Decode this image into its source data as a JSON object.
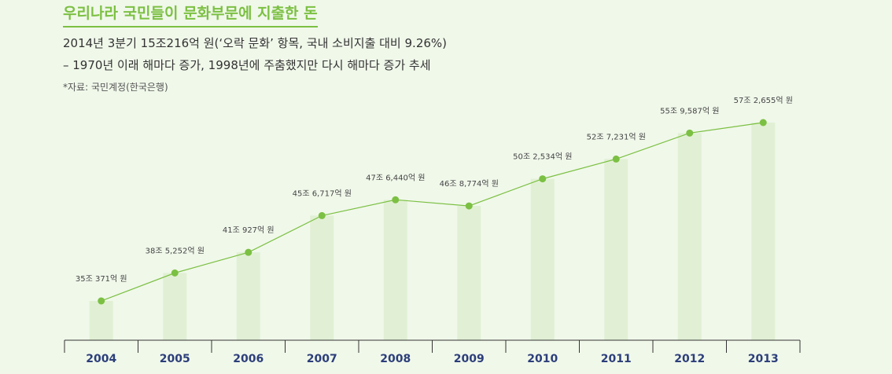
{
  "header": {
    "title": "우리나라 국민들이 문화부문에 지출한 돈",
    "subtitle_line1": "2014년 3분기 15조216억 원(‘오락 문화’ 항목, 국내 소비지출 대비 9.26%)",
    "subtitle_line2": "– 1970년 이래 해마다 증가, 1998년에 주춤했지만 다시 해마다 증가 추세",
    "source": "*자료: 국민계정(한국은행)"
  },
  "colors": {
    "title": "#7cc043",
    "line": "#7cc043",
    "point": "#7cc043",
    "bar": "#e1f0d4",
    "year_label": "#2c3e7a",
    "axis": "#333333",
    "value_label": "#444444"
  },
  "chart_data": {
    "type": "bar+line",
    "categories": [
      "2004",
      "2005",
      "2006",
      "2007",
      "2008",
      "2009",
      "2010",
      "2011",
      "2012",
      "2013"
    ],
    "values": [
      35.0371,
      38.5252,
      41.0927,
      45.6717,
      47.644,
      46.8774,
      50.2534,
      52.7231,
      55.9587,
      57.2655
    ],
    "value_labels": [
      "35조 371억 원",
      "38조 5,252억 원",
      "41조 927억 원",
      "45조 6,717억 원",
      "47조 6,440억 원",
      "46조 8,774억 원",
      "50조 2,534억 원",
      "52조 7,231억 원",
      "55조 9,587억 원",
      "57조 2,655억 원"
    ],
    "unit": "조 원",
    "legend": "none",
    "grid": false
  }
}
